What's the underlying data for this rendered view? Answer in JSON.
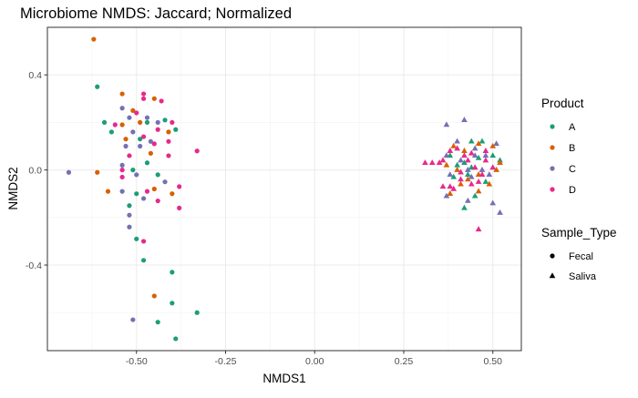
{
  "chart_data": {
    "type": "scatter",
    "title": "Microbiome NMDS: Jaccard; Normalized",
    "xlabel": "NMDS1",
    "ylabel": "NMDS2",
    "xlim": [
      -0.75,
      0.58
    ],
    "ylim": [
      -0.76,
      0.6
    ],
    "x_ticks": [
      -0.5,
      -0.25,
      0.0,
      0.25,
      0.5
    ],
    "x_tick_labels": [
      "-0.50",
      "-0.25",
      "0.00",
      "0.25",
      "0.50"
    ],
    "y_ticks": [
      -0.4,
      0.0,
      0.4
    ],
    "y_tick_labels": [
      "-0.4",
      "0.0",
      "0.4"
    ],
    "grid": true,
    "legend_placement": "right",
    "colors": {
      "A": "#1b9e77",
      "B": "#d95f02",
      "C": "#7570b3",
      "D": "#e7298a"
    },
    "legend": {
      "color_title": "Product",
      "color_entries": [
        "A",
        "B",
        "C",
        "D"
      ],
      "shape_title": "Sample_Type",
      "shape_entries": [
        "Fecal",
        "Saliva"
      ]
    },
    "series": [
      {
        "product": "A",
        "type": "Fecal",
        "points": [
          [
            -0.61,
            0.35
          ],
          [
            -0.59,
            0.2
          ],
          [
            -0.57,
            0.16
          ],
          [
            -0.51,
            0.0
          ],
          [
            -0.49,
            0.13
          ],
          [
            -0.47,
            0.03
          ],
          [
            -0.5,
            -0.1
          ],
          [
            -0.52,
            -0.15
          ],
          [
            -0.5,
            -0.29
          ],
          [
            -0.48,
            -0.38
          ],
          [
            -0.42,
            0.21
          ],
          [
            -0.39,
            0.17
          ],
          [
            -0.44,
            -0.02
          ],
          [
            -0.4,
            -0.43
          ],
          [
            -0.4,
            -0.56
          ],
          [
            -0.44,
            -0.64
          ],
          [
            -0.33,
            -0.6
          ],
          [
            -0.39,
            -0.71
          ],
          [
            -0.47,
            0.2
          ]
        ]
      },
      {
        "product": "B",
        "type": "Fecal",
        "points": [
          [
            -0.62,
            0.55
          ],
          [
            -0.54,
            0.32
          ],
          [
            -0.51,
            0.25
          ],
          [
            -0.49,
            0.2
          ],
          [
            -0.45,
            0.3
          ],
          [
            -0.41,
            0.16
          ],
          [
            -0.54,
            0.19
          ],
          [
            -0.61,
            -0.01
          ],
          [
            -0.58,
            -0.09
          ],
          [
            -0.45,
            -0.08
          ],
          [
            -0.4,
            -0.1
          ],
          [
            -0.45,
            -0.53
          ],
          [
            -0.53,
            0.13
          ],
          [
            -0.46,
            0.07
          ]
        ]
      },
      {
        "product": "C",
        "type": "Fecal",
        "points": [
          [
            -0.69,
            -0.01
          ],
          [
            -0.54,
            0.26
          ],
          [
            -0.52,
            0.22
          ],
          [
            -0.47,
            0.22
          ],
          [
            -0.44,
            0.2
          ],
          [
            -0.51,
            0.16
          ],
          [
            -0.53,
            0.1
          ],
          [
            -0.49,
            0.1
          ],
          [
            -0.54,
            0.02
          ],
          [
            -0.5,
            -0.02
          ],
          [
            -0.42,
            -0.05
          ],
          [
            -0.54,
            -0.09
          ],
          [
            -0.48,
            -0.12
          ],
          [
            -0.52,
            -0.19
          ],
          [
            -0.52,
            -0.24
          ],
          [
            -0.51,
            -0.63
          ],
          [
            -0.46,
            0.12
          ]
        ]
      },
      {
        "product": "D",
        "type": "Fecal",
        "points": [
          [
            -0.48,
            0.32
          ],
          [
            -0.48,
            0.3
          ],
          [
            -0.43,
            0.29
          ],
          [
            -0.5,
            0.24
          ],
          [
            -0.56,
            0.19
          ],
          [
            -0.4,
            0.2
          ],
          [
            -0.44,
            0.17
          ],
          [
            -0.41,
            0.12
          ],
          [
            -0.48,
            0.14
          ],
          [
            -0.45,
            0.11
          ],
          [
            -0.33,
            0.08
          ],
          [
            -0.54,
            0.0
          ],
          [
            -0.54,
            -0.03
          ],
          [
            -0.47,
            -0.09
          ],
          [
            -0.44,
            -0.13
          ],
          [
            -0.38,
            -0.07
          ],
          [
            -0.38,
            -0.16
          ],
          [
            -0.48,
            -0.3
          ],
          [
            -0.41,
            0.06
          ],
          [
            -0.52,
            0.06
          ]
        ]
      },
      {
        "product": "A",
        "type": "Saliva",
        "points": [
          [
            0.38,
            0.06
          ],
          [
            0.42,
            0.03
          ],
          [
            0.44,
            0.01
          ],
          [
            0.5,
            0.06
          ],
          [
            0.47,
            0.12
          ],
          [
            0.4,
            0.02
          ],
          [
            0.43,
            -0.02
          ],
          [
            0.48,
            -0.05
          ],
          [
            0.42,
            -0.16
          ],
          [
            0.46,
            0.05
          ],
          [
            0.52,
            0.04
          ],
          [
            0.39,
            -0.03
          ],
          [
            0.44,
            0.12
          ],
          [
            0.45,
            -0.11
          ]
        ]
      },
      {
        "product": "B",
        "type": "Saliva",
        "points": [
          [
            0.39,
            0.1
          ],
          [
            0.42,
            0.08
          ],
          [
            0.46,
            0.11
          ],
          [
            0.5,
            0.1
          ],
          [
            0.51,
            0.0
          ],
          [
            0.52,
            0.03
          ],
          [
            0.37,
            0.02
          ],
          [
            0.41,
            -0.06
          ],
          [
            0.46,
            -0.09
          ],
          [
            0.49,
            -0.06
          ],
          [
            0.43,
            -0.04
          ],
          [
            0.38,
            -0.1
          ],
          [
            0.4,
            0.0
          ],
          [
            0.46,
            -0.02
          ]
        ]
      },
      {
        "product": "C",
        "type": "Saliva",
        "points": [
          [
            0.37,
            0.19
          ],
          [
            0.42,
            0.21
          ],
          [
            0.4,
            0.12
          ],
          [
            0.45,
            0.09
          ],
          [
            0.51,
            0.11
          ],
          [
            0.37,
            0.06
          ],
          [
            0.41,
            0.04
          ],
          [
            0.45,
            0.06
          ],
          [
            0.48,
            0.06
          ],
          [
            0.38,
            -0.02
          ],
          [
            0.44,
            -0.03
          ],
          [
            0.49,
            -0.02
          ],
          [
            0.37,
            -0.11
          ],
          [
            0.43,
            -0.13
          ],
          [
            0.5,
            -0.14
          ],
          [
            0.52,
            -0.18
          ],
          [
            0.43,
            0.0
          ],
          [
            0.47,
            0.0
          ]
        ]
      },
      {
        "product": "D",
        "type": "Saliva",
        "points": [
          [
            0.31,
            0.03
          ],
          [
            0.33,
            0.03
          ],
          [
            0.35,
            0.03
          ],
          [
            0.36,
            0.04
          ],
          [
            0.38,
            0.08
          ],
          [
            0.4,
            0.09
          ],
          [
            0.42,
            0.06
          ],
          [
            0.44,
            0.07
          ],
          [
            0.48,
            0.08
          ],
          [
            0.5,
            0.01
          ],
          [
            0.48,
            0.04
          ],
          [
            0.45,
            0.01
          ],
          [
            0.43,
            0.04
          ],
          [
            0.41,
            -0.01
          ],
          [
            0.38,
            -0.07
          ],
          [
            0.36,
            -0.07
          ],
          [
            0.41,
            -0.04
          ],
          [
            0.47,
            -0.02
          ],
          [
            0.44,
            -0.06
          ],
          [
            0.46,
            -0.25
          ],
          [
            0.39,
            -0.08
          ],
          [
            0.46,
            -0.05
          ]
        ]
      }
    ]
  }
}
